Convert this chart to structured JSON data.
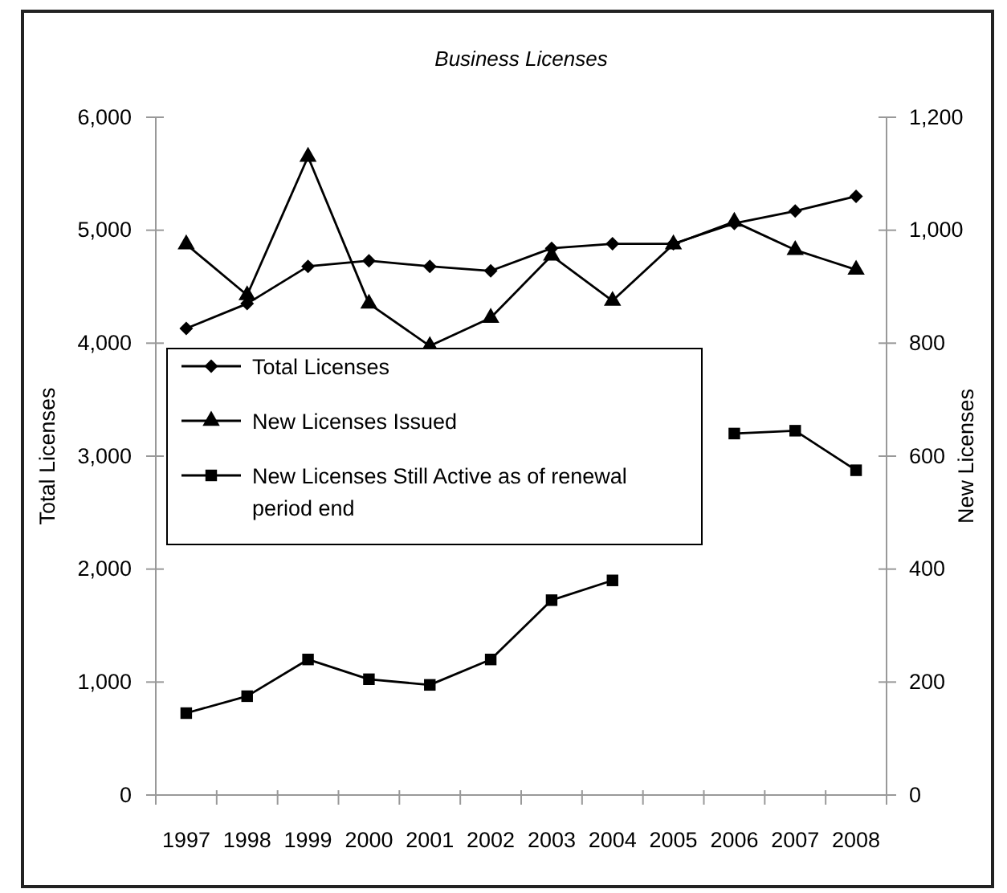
{
  "chart_data": {
    "type": "line",
    "title": "Business Licenses",
    "ylabel": "Total Licenses",
    "y2label": "New Licenses",
    "categories": [
      "1997",
      "1998",
      "1999",
      "2000",
      "2001",
      "2002",
      "2003",
      "2004",
      "2005",
      "2006",
      "2007",
      "2008"
    ],
    "series": [
      {
        "name": "Total Licenses",
        "color": "#000000",
        "marker": "diamond",
        "values": [
          4130,
          4350,
          4680,
          4730,
          4680,
          4640,
          4840,
          4880,
          4880,
          5060,
          5170,
          5300
        ]
      },
      {
        "name": "New Licenses Issued",
        "color": "#000000",
        "marker": "triangle",
        "axis": "y2",
        "values": [
          975,
          885,
          1130,
          870,
          795,
          845,
          955,
          875,
          975,
          1015,
          965,
          930
        ]
      },
      {
        "name": "New Licenses Still Active as of renewal period end",
        "color": "#000000",
        "marker": "square",
        "axis": "y2",
        "values": [
          145,
          175,
          240,
          205,
          195,
          240,
          345,
          380,
          null,
          640,
          645,
          575
        ]
      }
    ],
    "ylim": [
      0,
      6000
    ],
    "yticks": [
      0,
      {
        "value": 1000,
        "label": "1,000"
      },
      {
        "value": 2000,
        "label": "2,000"
      },
      {
        "value": 3000,
        "label": "3,000"
      },
      {
        "value": 4000,
        "label": "4,000"
      },
      {
        "value": 5000,
        "label": "5,000"
      },
      {
        "value": 6000,
        "label": "6,000"
      }
    ],
    "y2lim": [
      0,
      1200
    ],
    "y2ticks": [
      0,
      200,
      400,
      600,
      800,
      {
        "value": 1000,
        "label": "1,000"
      },
      {
        "value": 1200,
        "label": "1,200"
      }
    ],
    "legend": "left",
    "line_style": "solid"
  }
}
